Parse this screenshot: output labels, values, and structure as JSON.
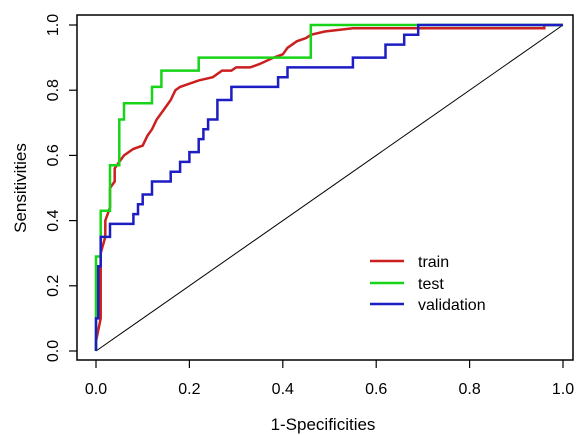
{
  "chart_data": {
    "type": "line",
    "title": "",
    "xlabel": "1-Specificities",
    "ylabel": "Sensitivities",
    "xlim": [
      0,
      1
    ],
    "ylim": [
      0,
      1
    ],
    "xticks": [
      "0.0",
      "0.2",
      "0.4",
      "0.6",
      "0.8",
      "1.0"
    ],
    "yticks": [
      "0.0",
      "0.2",
      "0.4",
      "0.6",
      "0.8",
      "1.0"
    ],
    "grid": false,
    "legend_position": "bottom-right",
    "reference_line": {
      "from": [
        0,
        0
      ],
      "to": [
        1,
        1
      ],
      "color": "#000000"
    },
    "series": [
      {
        "name": "train",
        "color": "#cc1f1f",
        "points": [
          [
            0,
            0
          ],
          [
            0,
            0.03
          ],
          [
            0.01,
            0.1
          ],
          [
            0.01,
            0.22
          ],
          [
            0.01,
            0.3
          ],
          [
            0.02,
            0.35
          ],
          [
            0.02,
            0.4
          ],
          [
            0.03,
            0.44
          ],
          [
            0.03,
            0.5
          ],
          [
            0.04,
            0.52
          ],
          [
            0.04,
            0.56
          ],
          [
            0.05,
            0.58
          ],
          [
            0.06,
            0.6
          ],
          [
            0.07,
            0.61
          ],
          [
            0.08,
            0.62
          ],
          [
            0.1,
            0.63
          ],
          [
            0.11,
            0.66
          ],
          [
            0.12,
            0.68
          ],
          [
            0.13,
            0.71
          ],
          [
            0.14,
            0.73
          ],
          [
            0.15,
            0.75
          ],
          [
            0.16,
            0.77
          ],
          [
            0.17,
            0.8
          ],
          [
            0.18,
            0.81
          ],
          [
            0.2,
            0.82
          ],
          [
            0.22,
            0.83
          ],
          [
            0.25,
            0.84
          ],
          [
            0.27,
            0.86
          ],
          [
            0.29,
            0.86
          ],
          [
            0.3,
            0.87
          ],
          [
            0.33,
            0.87
          ],
          [
            0.35,
            0.88
          ],
          [
            0.38,
            0.9
          ],
          [
            0.4,
            0.91
          ],
          [
            0.41,
            0.93
          ],
          [
            0.43,
            0.95
          ],
          [
            0.45,
            0.96
          ],
          [
            0.46,
            0.97
          ],
          [
            0.49,
            0.98
          ],
          [
            0.55,
            0.99
          ],
          [
            0.65,
            0.99
          ],
          [
            0.8,
            0.99
          ],
          [
            0.96,
            0.99
          ],
          [
            0.96,
            1.0
          ],
          [
            1,
            1
          ]
        ]
      },
      {
        "name": "test",
        "color": "#18d418",
        "points": [
          [
            0,
            0
          ],
          [
            0,
            0.29
          ],
          [
            0.01,
            0.29
          ],
          [
            0.01,
            0.43
          ],
          [
            0.03,
            0.43
          ],
          [
            0.03,
            0.57
          ],
          [
            0.05,
            0.57
          ],
          [
            0.05,
            0.71
          ],
          [
            0.06,
            0.71
          ],
          [
            0.06,
            0.76
          ],
          [
            0.12,
            0.76
          ],
          [
            0.12,
            0.81
          ],
          [
            0.14,
            0.81
          ],
          [
            0.14,
            0.86
          ],
          [
            0.22,
            0.86
          ],
          [
            0.22,
            0.9
          ],
          [
            0.46,
            0.9
          ],
          [
            0.46,
            1.0
          ],
          [
            1,
            1
          ]
        ]
      },
      {
        "name": "validation",
        "color": "#1d1dc4",
        "points": [
          [
            0,
            0
          ],
          [
            0,
            0.1
          ],
          [
            0.005,
            0.1
          ],
          [
            0.005,
            0.26
          ],
          [
            0.01,
            0.26
          ],
          [
            0.01,
            0.35
          ],
          [
            0.03,
            0.35
          ],
          [
            0.03,
            0.39
          ],
          [
            0.08,
            0.39
          ],
          [
            0.08,
            0.42
          ],
          [
            0.09,
            0.42
          ],
          [
            0.09,
            0.45
          ],
          [
            0.1,
            0.45
          ],
          [
            0.1,
            0.48
          ],
          [
            0.12,
            0.48
          ],
          [
            0.12,
            0.52
          ],
          [
            0.16,
            0.52
          ],
          [
            0.16,
            0.55
          ],
          [
            0.18,
            0.55
          ],
          [
            0.18,
            0.58
          ],
          [
            0.2,
            0.58
          ],
          [
            0.2,
            0.61
          ],
          [
            0.22,
            0.61
          ],
          [
            0.22,
            0.65
          ],
          [
            0.23,
            0.65
          ],
          [
            0.23,
            0.68
          ],
          [
            0.24,
            0.68
          ],
          [
            0.24,
            0.71
          ],
          [
            0.26,
            0.71
          ],
          [
            0.26,
            0.77
          ],
          [
            0.29,
            0.77
          ],
          [
            0.29,
            0.81
          ],
          [
            0.39,
            0.81
          ],
          [
            0.39,
            0.84
          ],
          [
            0.41,
            0.84
          ],
          [
            0.41,
            0.87
          ],
          [
            0.55,
            0.87
          ],
          [
            0.55,
            0.9
          ],
          [
            0.62,
            0.9
          ],
          [
            0.62,
            0.94
          ],
          [
            0.66,
            0.94
          ],
          [
            0.66,
            0.97
          ],
          [
            0.69,
            0.97
          ],
          [
            0.69,
            1.0
          ],
          [
            1,
            1
          ]
        ]
      }
    ]
  }
}
